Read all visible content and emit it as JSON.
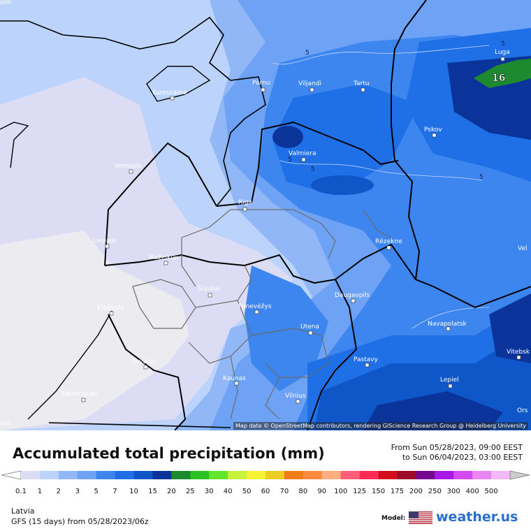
{
  "map": {
    "cities": [
      {
        "name": "Kuressaare"
      },
      {
        "name": "Pärnu"
      },
      {
        "name": "Viljandi"
      },
      {
        "name": "Tartu"
      },
      {
        "name": "Luga"
      },
      {
        "name": "Pskov"
      },
      {
        "name": "Valmiera"
      },
      {
        "name": "Ventspils"
      },
      {
        "name": "Riga"
      },
      {
        "name": "Liepaja"
      },
      {
        "name": "Rēzekne"
      },
      {
        "name": "Mažeikiai"
      },
      {
        "name": "Šiauliai"
      },
      {
        "name": "Panevėžys"
      },
      {
        "name": "Daugavpils"
      },
      {
        "name": "Klaipeda"
      },
      {
        "name": "Navapolatsk"
      },
      {
        "name": "Utena"
      },
      {
        "name": "Sovetsk"
      },
      {
        "name": "Pastavy"
      },
      {
        "name": "Vitebsk"
      },
      {
        "name": "Kaunas"
      },
      {
        "name": "Lepiel"
      },
      {
        "name": "Kaliningrad"
      },
      {
        "name": "Vilnius"
      },
      {
        "name": "Orsha"
      }
    ],
    "partial_labels": [
      "olm",
      "Vel",
      "nsk",
      "Ors"
    ],
    "contour_labels": [
      "5",
      "5",
      "5",
      "5",
      "5"
    ],
    "value_label": "16",
    "attribution": "Map data © OpenStreetMap contributors, rendering GIScience Research Group @ Heidelberg University"
  },
  "title": "Accumulated total precipitation (mm)",
  "range": {
    "from": "From Sun 05/28/2023, 09:00 EEST",
    "to": "to Sun 06/04/2023, 03:00 EEST"
  },
  "scale": {
    "ticks": [
      "0.1",
      "1",
      "2",
      "3",
      "5",
      "7",
      "10",
      "15",
      "20",
      "25",
      "30",
      "40",
      "50",
      "60",
      "70",
      "80",
      "90",
      "100",
      "125",
      "150",
      "175",
      "200",
      "250",
      "300",
      "400",
      "500"
    ],
    "colors": [
      "#dcdcf4",
      "#bcd4fb",
      "#92b7f7",
      "#6da2f5",
      "#3d86f0",
      "#1f6fe6",
      "#0f57c9",
      "#0a349a",
      "#1d8a2f",
      "#2bc124",
      "#62e62c",
      "#c8f23c",
      "#f5f333",
      "#eace24",
      "#f07d18",
      "#ff8b40",
      "#ffae82",
      "#ff5d78",
      "#ff2c57",
      "#d40c1c",
      "#9c0a2a",
      "#75088f",
      "#a619e6",
      "#d34af0",
      "#ea86f3",
      "#f2b9f6",
      "#f5ecf9",
      "#cccccc"
    ]
  },
  "footer": {
    "region": "Latvia",
    "model_run": "GFS (15 days) from  05/28/2023/06z",
    "model_label": "Model:",
    "brand": "weather.us"
  }
}
